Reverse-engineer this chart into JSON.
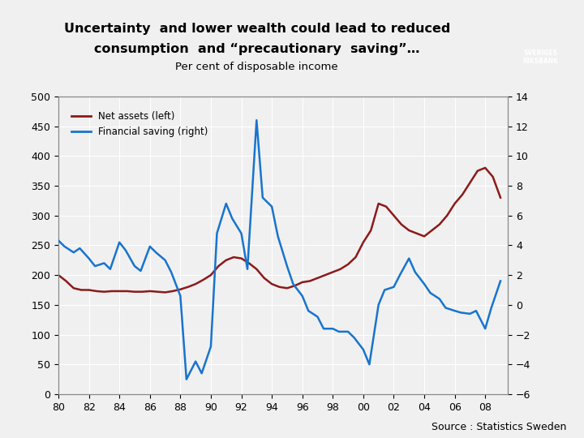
{
  "title_line1": "Uncertainty  and lower wealth could lead to reduced",
  "title_line2": "consumption  and “precautionary  saving”…",
  "subtitle": "Per cent of disposable income",
  "source": "Source : Statistics Sweden",
  "legend_net": "Net assets (left)",
  "legend_fin": "Financial saving (right)",
  "net_color": "#8B1A1A",
  "fin_color": "#1874CD",
  "left_ylim": [
    0,
    500
  ],
  "right_ylim": [
    -6,
    14
  ],
  "left_yticks": [
    0,
    50,
    100,
    150,
    200,
    250,
    300,
    350,
    400,
    450,
    500
  ],
  "right_yticks": [
    -6,
    -4,
    -2,
    0,
    2,
    4,
    6,
    8,
    10,
    12,
    14
  ],
  "xtick_pos": [
    1980,
    1982,
    1984,
    1986,
    1988,
    1990,
    1992,
    1994,
    1996,
    1998,
    2000,
    2002,
    2004,
    2006,
    2008
  ],
  "xtick_labels": [
    "80",
    "82",
    "84",
    "86",
    "88",
    "90",
    "92",
    "94",
    "96",
    "98",
    "00",
    "02",
    "04",
    "06",
    "08"
  ],
  "net_x": [
    1980,
    1980.5,
    1981,
    1981.5,
    1982,
    1982.5,
    1983,
    1983.5,
    1984,
    1984.5,
    1985,
    1985.5,
    1986,
    1986.5,
    1987,
    1987.5,
    1988,
    1988.5,
    1989,
    1989.5,
    1990,
    1990.5,
    1991,
    1991.5,
    1992,
    1992.5,
    1993,
    1993.5,
    1994,
    1994.5,
    1995,
    1995.5,
    1996,
    1996.5,
    1997,
    1997.5,
    1998,
    1998.5,
    1999,
    1999.5,
    2000,
    2000.5,
    2001,
    2001.5,
    2002,
    2002.5,
    2003,
    2003.5,
    2004,
    2004.5,
    2005,
    2005.5,
    2006,
    2006.5,
    2007,
    2007.5,
    2008,
    2008.5,
    2009
  ],
  "net_y": [
    200,
    190,
    178,
    175,
    175,
    173,
    172,
    173,
    173,
    173,
    172,
    172,
    173,
    172,
    171,
    173,
    176,
    180,
    185,
    192,
    200,
    215,
    225,
    230,
    228,
    220,
    210,
    195,
    185,
    180,
    178,
    182,
    188,
    190,
    195,
    200,
    205,
    210,
    218,
    230,
    255,
    275,
    320,
    315,
    300,
    285,
    275,
    270,
    265,
    275,
    285,
    300,
    320,
    335,
    355,
    375,
    380,
    365,
    330
  ],
  "fin_x": [
    1980,
    1980.4,
    1981,
    1981.4,
    1982,
    1982.4,
    1983,
    1983.4,
    1984,
    1984.4,
    1985,
    1985.4,
    1986,
    1986.4,
    1987,
    1987.4,
    1988,
    1988.4,
    1989,
    1989.4,
    1990,
    1990.4,
    1991,
    1991.4,
    1992,
    1992.4,
    1993,
    1993.4,
    1994,
    1994.4,
    1995,
    1995.4,
    1996,
    1996.4,
    1997,
    1997.4,
    1998,
    1998.4,
    1999,
    1999.4,
    2000,
    2000.4,
    2001,
    2001.4,
    2002,
    2002.4,
    2003,
    2003.4,
    2004,
    2004.4,
    2005,
    2005.4,
    2006,
    2006.4,
    2007,
    2007.4,
    2008,
    2008.4,
    2009
  ],
  "fin_y_left": [
    258,
    248,
    238,
    245,
    228,
    215,
    220,
    210,
    255,
    242,
    215,
    207,
    248,
    238,
    225,
    205,
    165,
    25,
    55,
    35,
    80,
    270,
    320,
    295,
    270,
    210,
    460,
    330,
    315,
    265,
    215,
    185,
    165,
    140,
    130,
    110,
    110,
    105,
    105,
    95,
    75,
    50,
    150,
    175,
    180,
    200,
    228,
    205,
    185,
    170,
    160,
    145,
    140,
    137,
    135,
    140,
    110,
    145,
    190
  ]
}
